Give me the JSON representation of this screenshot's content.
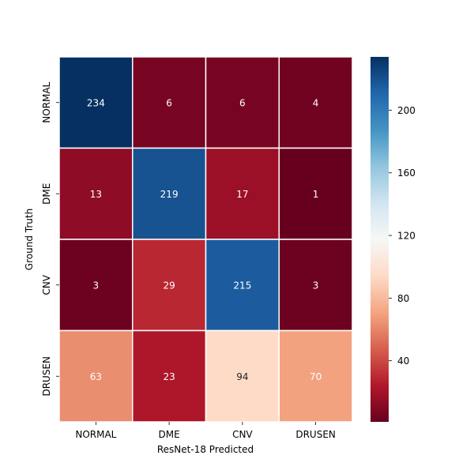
{
  "chart_data": {
    "type": "heatmap",
    "title": "",
    "xlabel": "ResNet-18 Predicted",
    "ylabel": "Ground Truth",
    "x_categories": [
      "NORMAL",
      "DME",
      "CNV",
      "DRUSEN"
    ],
    "y_categories": [
      "NORMAL",
      "DME",
      "CNV",
      "DRUSEN"
    ],
    "values": [
      [
        234,
        6,
        6,
        4
      ],
      [
        13,
        219,
        17,
        1
      ],
      [
        3,
        29,
        215,
        3
      ],
      [
        63,
        23,
        94,
        70
      ]
    ],
    "colorbar": {
      "colormap": "RdBu",
      "vmin": 1,
      "vmax": 234,
      "ticks": [
        40,
        80,
        120,
        160,
        200
      ],
      "tick_labels": [
        "40",
        "80",
        "120",
        "160",
        "200"
      ]
    },
    "colors": {
      "cell_border": "#ffffff",
      "text_on_dark": "#ffffff",
      "text_on_light": "#262626"
    }
  }
}
